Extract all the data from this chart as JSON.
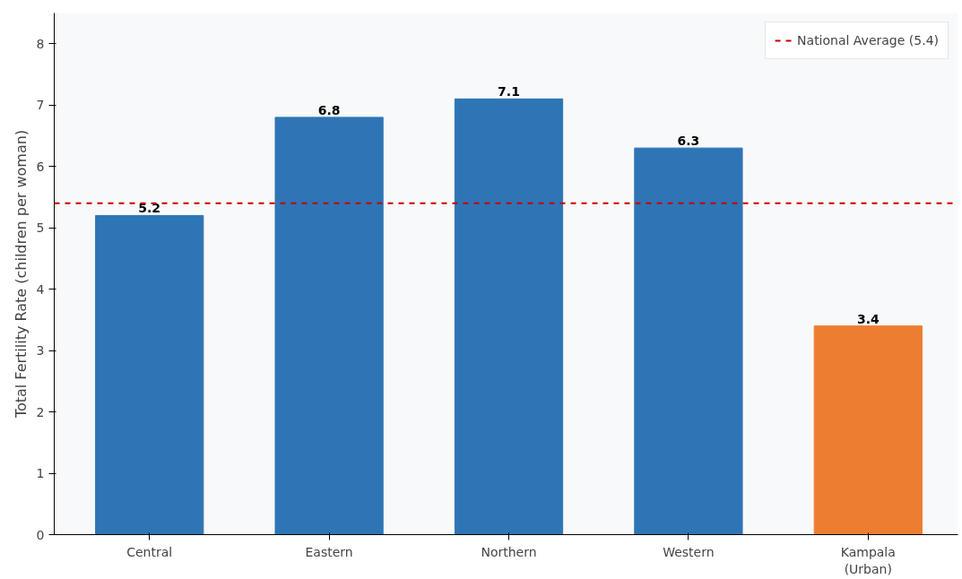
{
  "chart_data": {
    "type": "bar",
    "ylabel": "Total Fertility Rate (children per woman)",
    "categories": [
      "Central",
      "Eastern",
      "Northern",
      "Western",
      "Kampala\n(Urban)"
    ],
    "values": [
      5.2,
      6.8,
      7.1,
      6.3,
      3.4
    ],
    "colors": [
      "#2e75b6",
      "#2e75b6",
      "#2e75b6",
      "#2e75b6",
      "#ed7d31"
    ],
    "ylim": [
      0,
      8.5
    ],
    "yticks": [
      0,
      1,
      2,
      3,
      4,
      5,
      6,
      7,
      8
    ],
    "data_labels": true,
    "grid": false,
    "legend": "top right",
    "ref_lines": [
      {
        "axis": "y",
        "value": 5.4,
        "label": "National Average (5.4)",
        "color": "#cc0000",
        "line_style": "dashed"
      }
    ]
  }
}
